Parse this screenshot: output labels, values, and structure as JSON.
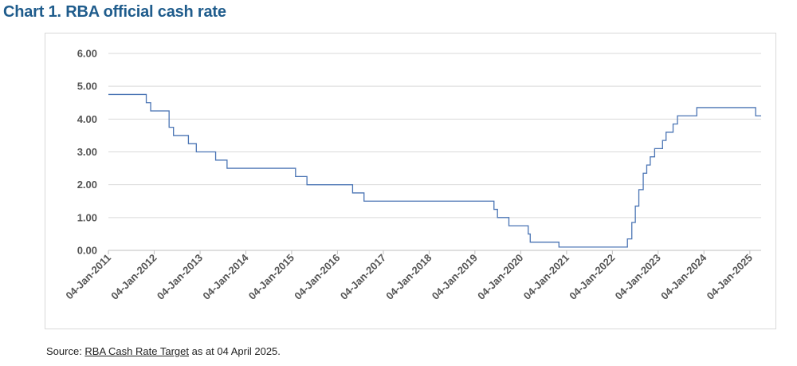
{
  "title": "Chart 1. RBA official cash rate",
  "source": {
    "prefix": "Source: ",
    "link_text": "RBA Cash Rate Target",
    "suffix": " as at 04 April 2025."
  },
  "colors": {
    "title": "#1f5c8c",
    "line": "#4a74b4",
    "grid": "#d9d9d9",
    "axis_text": "#555555"
  },
  "chart_data": {
    "type": "line",
    "title": "Chart 1. RBA official cash rate",
    "xlabel": "",
    "ylabel": "",
    "ylim": [
      0,
      6
    ],
    "yticks": [
      "0.00",
      "1.00",
      "2.00",
      "3.00",
      "4.00",
      "5.00",
      "6.00"
    ],
    "xlim": [
      "2011-01-04",
      "2025-04-04"
    ],
    "xticks": [
      "04-Jan-2011",
      "04-Jan-2012",
      "04-Jan-2013",
      "04-Jan-2014",
      "04-Jan-2015",
      "04-Jan-2016",
      "04-Jan-2017",
      "04-Jan-2018",
      "04-Jan-2019",
      "04-Jan-2020",
      "04-Jan-2021",
      "04-Jan-2022",
      "04-Jan-2023",
      "04-Jan-2024",
      "04-Jan-2025"
    ],
    "grid": true,
    "legend": "none",
    "series": [
      {
        "step": true,
        "points": [
          [
            "2011-01-04",
            4.75
          ],
          [
            "2011-11-02",
            4.5
          ],
          [
            "2011-12-07",
            4.25
          ],
          [
            "2012-05-02",
            3.75
          ],
          [
            "2012-06-06",
            3.5
          ],
          [
            "2012-10-03",
            3.25
          ],
          [
            "2012-12-05",
            3.0
          ],
          [
            "2013-05-08",
            2.75
          ],
          [
            "2013-08-07",
            2.5
          ],
          [
            "2015-02-04",
            2.25
          ],
          [
            "2015-05-06",
            2.0
          ],
          [
            "2016-05-04",
            1.75
          ],
          [
            "2016-08-03",
            1.5
          ],
          [
            "2019-06-05",
            1.25
          ],
          [
            "2019-07-03",
            1.0
          ],
          [
            "2019-10-02",
            0.75
          ],
          [
            "2020-03-04",
            0.5
          ],
          [
            "2020-03-20",
            0.25
          ],
          [
            "2020-11-04",
            0.1
          ],
          [
            "2022-05-04",
            0.35
          ],
          [
            "2022-06-08",
            0.85
          ],
          [
            "2022-07-06",
            1.35
          ],
          [
            "2022-08-03",
            1.85
          ],
          [
            "2022-09-07",
            2.35
          ],
          [
            "2022-10-05",
            2.6
          ],
          [
            "2022-11-02",
            2.85
          ],
          [
            "2022-12-07",
            3.1
          ],
          [
            "2023-02-08",
            3.35
          ],
          [
            "2023-03-08",
            3.6
          ],
          [
            "2023-05-03",
            3.85
          ],
          [
            "2023-06-07",
            4.1
          ],
          [
            "2023-11-08",
            4.35
          ],
          [
            "2025-02-19",
            4.1
          ],
          [
            "2025-04-04",
            4.1
          ]
        ]
      }
    ]
  }
}
